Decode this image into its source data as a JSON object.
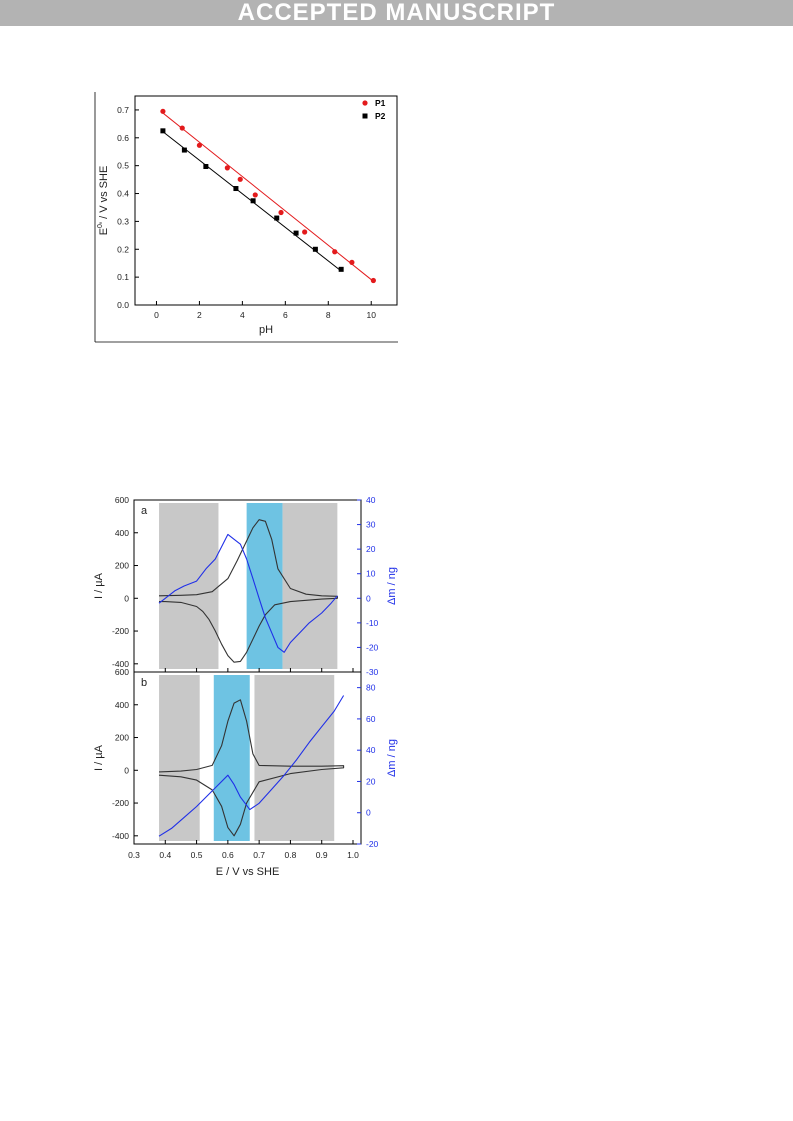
{
  "header": {
    "banner": "ACCEPTED MANUSCRIPT"
  },
  "colors": {
    "p1": "#e31a1c",
    "p2": "#000000",
    "mass": "#2030e8",
    "current": "#333333",
    "grey_band": "#c8c8c8",
    "blue_band": "#6ec3e3"
  },
  "chart_data": [
    {
      "type": "scatter",
      "xlabel": "pH",
      "ylabel": "E",
      "ylabel_sup": "0",
      "ylabel_rest": "' / V vs SHE",
      "xlim": [
        -1,
        11.2
      ],
      "ylim": [
        0.0,
        0.75
      ],
      "x_ticks": [
        "0",
        "2",
        "4",
        "6",
        "8",
        "10"
      ],
      "x_tick_values": [
        0,
        2,
        4,
        6,
        8,
        10
      ],
      "y_ticks": [
        "0.0",
        "0.1",
        "0.2",
        "0.3",
        "0.4",
        "0.5",
        "0.6",
        "0.7"
      ],
      "y_tick_values": [
        0.0,
        0.1,
        0.2,
        0.3,
        0.4,
        0.5,
        0.6,
        0.7
      ],
      "legend": "top-right",
      "series": [
        {
          "name": "P1",
          "marker": "circle",
          "x": [
            0.3,
            1.2,
            2.0,
            3.3,
            3.9,
            4.6,
            5.8,
            6.9,
            8.3,
            9.1,
            10.1
          ],
          "y": [
            0.695,
            0.635,
            0.573,
            0.492,
            0.451,
            0.395,
            0.332,
            0.262,
            0.191,
            0.153,
            0.088
          ],
          "fit": [
            [
              0.2,
              0.695
            ],
            [
              10.1,
              0.085
            ]
          ]
        },
        {
          "name": "P2",
          "marker": "square",
          "x": [
            0.3,
            1.3,
            2.3,
            3.7,
            4.5,
            5.6,
            6.5,
            7.4,
            8.6
          ],
          "y": [
            0.625,
            0.556,
            0.497,
            0.418,
            0.374,
            0.312,
            0.258,
            0.2,
            0.128
          ],
          "fit": [
            [
              0.25,
              0.625
            ],
            [
              8.6,
              0.122
            ]
          ]
        }
      ]
    },
    {
      "type": "line",
      "panel_label": "a",
      "xlim": [
        0.3,
        1.0
      ],
      "ylim": [
        -450,
        600
      ],
      "y2lim": [
        -30,
        40
      ],
      "ylabel": "I / µA",
      "y2label": "Δm / ng",
      "y_ticks": [
        "-400",
        "-200",
        "0",
        "200",
        "400",
        "600"
      ],
      "y_tick_values": [
        -400,
        -200,
        0,
        200,
        400,
        600
      ],
      "y2_ticks": [
        "-30",
        "-20",
        "-10",
        "0",
        "10",
        "20",
        "30",
        "40"
      ],
      "y2_tick_values": [
        -30,
        -20,
        -10,
        0,
        10,
        20,
        30,
        40
      ],
      "shaded_regions": [
        {
          "from": 0.38,
          "to": 0.57,
          "color": "grey"
        },
        {
          "from": 0.66,
          "to": 0.775,
          "color": "blue"
        },
        {
          "from": 0.775,
          "to": 0.95,
          "color": "grey"
        }
      ],
      "series": [
        {
          "axis": "current",
          "x": [
            0.38,
            0.45,
            0.5,
            0.55,
            0.6,
            0.63,
            0.66,
            0.68,
            0.7,
            0.72,
            0.74,
            0.76,
            0.8,
            0.85,
            0.9,
            0.95,
            0.95,
            0.9,
            0.85,
            0.8,
            0.75,
            0.72,
            0.7,
            0.68,
            0.66,
            0.64,
            0.62,
            0.6,
            0.58,
            0.56,
            0.54,
            0.52,
            0.5,
            0.45,
            0.4,
            0.38
          ],
          "y": [
            15,
            18,
            22,
            40,
            120,
            230,
            350,
            430,
            480,
            470,
            360,
            180,
            60,
            25,
            15,
            12,
            0,
            -5,
            -12,
            -20,
            -40,
            -100,
            -170,
            -250,
            -330,
            -385,
            -390,
            -350,
            -280,
            -200,
            -130,
            -80,
            -50,
            -25,
            -20,
            -20
          ]
        },
        {
          "axis": "mass",
          "x": [
            0.38,
            0.4,
            0.43,
            0.46,
            0.5,
            0.53,
            0.56,
            0.58,
            0.6,
            0.62,
            0.64,
            0.66,
            0.68,
            0.7,
            0.72,
            0.74,
            0.76,
            0.78,
            0.8,
            0.83,
            0.86,
            0.9,
            0.93,
            0.95
          ],
          "y": [
            -2,
            0,
            3,
            5,
            7,
            12,
            16,
            21,
            26,
            24,
            22,
            16,
            8,
            0,
            -8,
            -14,
            -20,
            -22,
            -18,
            -14,
            -10,
            -6,
            -2,
            1
          ]
        }
      ]
    },
    {
      "type": "line",
      "panel_label": "b",
      "xlim": [
        0.3,
        1.0
      ],
      "ylim": [
        -450,
        600
      ],
      "y2lim": [
        -20,
        90
      ],
      "ylabel": "I / µA",
      "y2label": "Δm / ng",
      "xlabel": "E / V vs SHE",
      "x_ticks": [
        "0.3",
        "0.4",
        "0.5",
        "0.6",
        "0.7",
        "0.8",
        "0.9",
        "1.0"
      ],
      "x_tick_values": [
        0.3,
        0.4,
        0.5,
        0.6,
        0.7,
        0.8,
        0.9,
        1.0
      ],
      "y_ticks": [
        "-400",
        "-200",
        "0",
        "200",
        "400",
        "600"
      ],
      "y_tick_values": [
        -400,
        -200,
        0,
        200,
        400,
        600
      ],
      "y2_ticks": [
        "-20",
        "0",
        "20",
        "40",
        "60",
        "80"
      ],
      "y2_tick_values": [
        -20,
        0,
        20,
        40,
        60,
        80
      ],
      "shaded_regions": [
        {
          "from": 0.38,
          "to": 0.51,
          "color": "grey"
        },
        {
          "from": 0.555,
          "to": 0.67,
          "color": "blue"
        },
        {
          "from": 0.685,
          "to": 0.94,
          "color": "grey"
        }
      ],
      "series": [
        {
          "axis": "current",
          "x": [
            0.38,
            0.45,
            0.5,
            0.55,
            0.58,
            0.6,
            0.62,
            0.64,
            0.66,
            0.68,
            0.7,
            0.8,
            0.9,
            0.97,
            0.97,
            0.9,
            0.8,
            0.7,
            0.66,
            0.64,
            0.62,
            0.6,
            0.58,
            0.55,
            0.5,
            0.45,
            0.38
          ],
          "y": [
            -10,
            -5,
            5,
            30,
            150,
            300,
            410,
            430,
            300,
            100,
            30,
            25,
            25,
            28,
            15,
            5,
            -20,
            -70,
            -200,
            -330,
            -400,
            -350,
            -220,
            -120,
            -60,
            -40,
            -30
          ]
        },
        {
          "axis": "mass",
          "x": [
            0.38,
            0.42,
            0.46,
            0.5,
            0.54,
            0.57,
            0.6,
            0.62,
            0.64,
            0.67,
            0.7,
            0.74,
            0.78,
            0.82,
            0.86,
            0.9,
            0.94,
            0.97
          ],
          "y": [
            -15,
            -10,
            -3,
            4,
            12,
            18,
            24,
            18,
            10,
            2,
            6,
            15,
            24,
            34,
            45,
            55,
            65,
            75
          ]
        }
      ]
    }
  ]
}
